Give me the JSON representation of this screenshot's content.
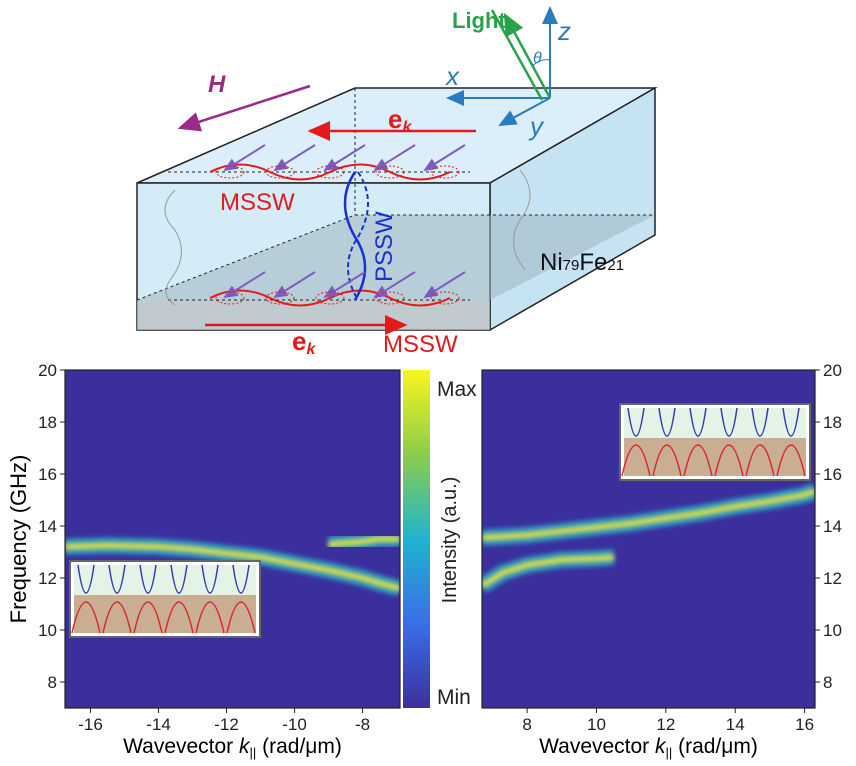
{
  "diagram": {
    "labels": {
      "light": "Light",
      "z": "z",
      "theta": "θ",
      "x": "x",
      "y": "y",
      "h": "H",
      "ek_top": {
        "base": "e",
        "sub": "k"
      },
      "mssw_top": "MSSW",
      "pssw": "PSSW",
      "material": [
        "Ni",
        "79",
        "Fe",
        "21"
      ],
      "ek_bottom": {
        "base": "e",
        "sub": "k"
      },
      "mssw_bottom": "MSSW"
    }
  },
  "colorbar": {
    "max": "Max",
    "min": "Min",
    "label": "Intensity (a.u.)"
  },
  "chart_data": [
    {
      "type": "heatmap",
      "ylabel": "Frequency (GHz)",
      "xlabel": [
        "Wavevector ",
        "k",
        "||",
        " (rad/μm)"
      ],
      "xlim": [
        -16.75,
        -6.9
      ],
      "ylim": [
        7,
        20
      ],
      "xticks": [
        -16,
        -14,
        -12,
        -10,
        -8
      ],
      "yticks": [
        8,
        10,
        12,
        14,
        16,
        18,
        20
      ],
      "background": "#3b2f9d",
      "ridge_color": "#f2e43a",
      "series": [
        {
          "x": [
            -16.75,
            -15.5,
            -14,
            -13,
            -12,
            -11,
            -10,
            -9,
            -8,
            -7.5,
            -6.9
          ],
          "values": [
            13.2,
            13.25,
            13.2,
            13.1,
            12.95,
            12.8,
            12.55,
            12.3,
            12.0,
            11.8,
            11.6
          ]
        },
        {
          "x": [
            -9,
            -8,
            -7.5,
            -6.9
          ],
          "values": [
            13.3,
            13.4,
            13.5,
            13.5
          ]
        }
      ]
    },
    {
      "type": "heatmap",
      "xlabel": [
        "Wavevector ",
        "k",
        "||",
        " (rad/μm)"
      ],
      "xlim": [
        6.7,
        16.3
      ],
      "ylim": [
        7,
        20
      ],
      "xticks": [
        8,
        10,
        12,
        14,
        16
      ],
      "yticks": [
        8,
        10,
        12,
        14,
        16,
        18,
        20
      ],
      "background": "#3b2f9d",
      "ridge_color": "#f2e43a",
      "series": [
        {
          "x": [
            6.7,
            8,
            9,
            10,
            11,
            12,
            13,
            14,
            15,
            16,
            16.3
          ],
          "values": [
            13.55,
            13.65,
            13.8,
            13.95,
            14.1,
            14.3,
            14.5,
            14.75,
            14.95,
            15.2,
            15.35
          ]
        },
        {
          "x": [
            6.7,
            7.3,
            8,
            9,
            10,
            10.5
          ],
          "values": [
            11.7,
            12.2,
            12.5,
            12.7,
            12.75,
            12.8
          ]
        }
      ]
    }
  ]
}
